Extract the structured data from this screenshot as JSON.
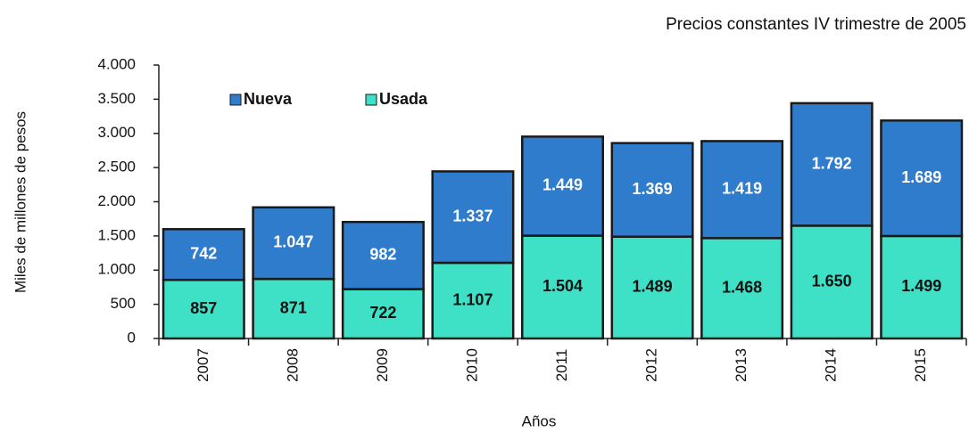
{
  "chart_data": {
    "type": "stacked_bar",
    "title": "Precios constantes IV trimestre de 2005",
    "y_label": "Miles de millones de pesos",
    "x_label": "Años",
    "categories": [
      "2007",
      "2008",
      "2009",
      "2010",
      "2011",
      "2012",
      "2013",
      "2014",
      "2015"
    ],
    "series": [
      {
        "name": "Nueva",
        "color": "#2f7ccc",
        "label_color": "#ffffff",
        "values": [
          742,
          1047,
          982,
          1337,
          1449,
          1369,
          1419,
          1792,
          1689
        ],
        "value_labels": [
          "742",
          "1.047",
          "982",
          "1.337",
          "1.449",
          "1.369",
          "1.419",
          "1.792",
          "1.689"
        ]
      },
      {
        "name": "Usada",
        "color": "#3ee0c6",
        "label_color": "#111111",
        "values": [
          857,
          871,
          722,
          1107,
          1504,
          1489,
          1468,
          1650,
          1499
        ],
        "value_labels": [
          "857",
          "871",
          "722",
          "1.107",
          "1.504",
          "1.489",
          "1.468",
          "1.650",
          "1.499"
        ]
      }
    ],
    "ylim": [
      0,
      4000
    ],
    "yticks": [
      0,
      500,
      {
        "value": 1000,
        "label": "1.000"
      },
      {
        "value": 1500,
        "label": "1.500"
      },
      {
        "value": 2000,
        "label": "2.000"
      },
      {
        "value": 2500,
        "label": "2.500"
      },
      {
        "value": 3000,
        "label": "3.000"
      },
      {
        "value": 3500,
        "label": "3.500"
      },
      {
        "value": 4000,
        "label": "4.000"
      }
    ],
    "legend": "top-left"
  }
}
